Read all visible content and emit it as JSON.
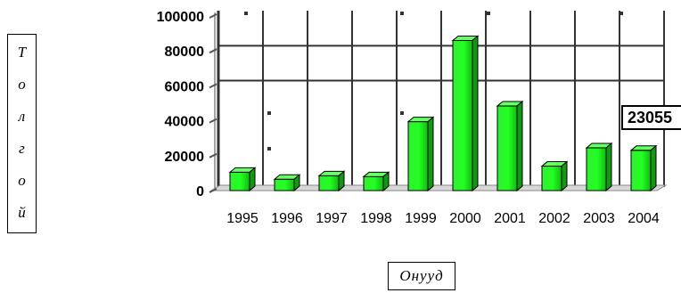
{
  "chart_data": {
    "type": "bar",
    "categories": [
      "1995",
      "1996",
      "1997",
      "1998",
      "1999",
      "2000",
      "2001",
      "2002",
      "2003",
      "2004"
    ],
    "series": [
      {
        "values": [
          10500,
          6500,
          8500,
          8000,
          39500,
          86000,
          48500,
          14000,
          24500,
          23055
        ]
      }
    ],
    "ylim": [
      0,
      100000
    ],
    "yticks": [
      "0",
      "20000",
      "40000",
      "60000",
      "80000",
      "100000"
    ],
    "ylabel": "Толгой",
    "xlabel": "Онууд",
    "annotation": "23055",
    "bar_color": "#22dd22",
    "grid": true,
    "legend": false
  }
}
